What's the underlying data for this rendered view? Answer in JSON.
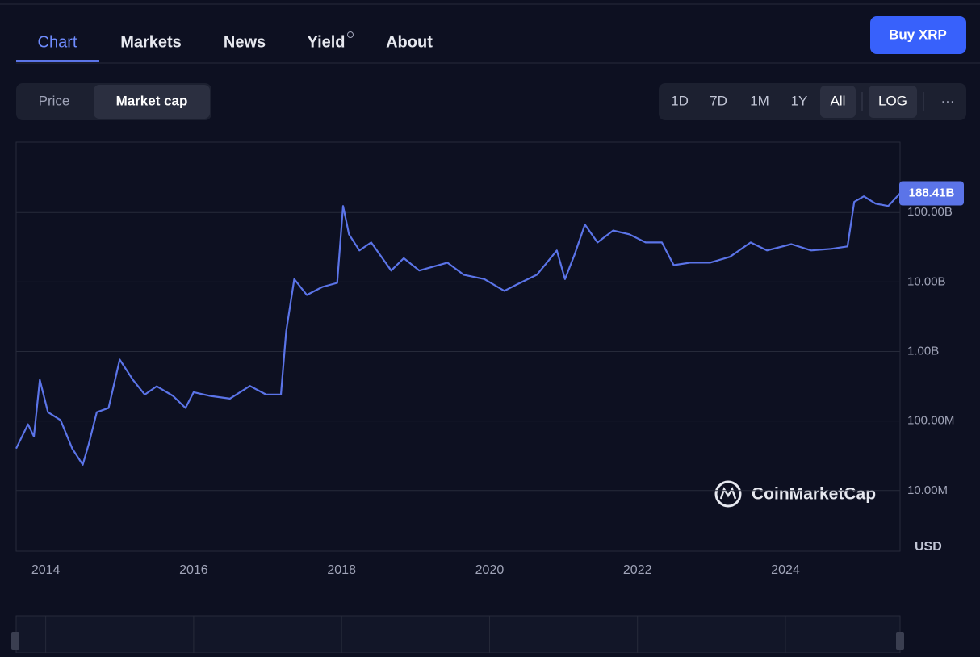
{
  "nav": {
    "tabs": [
      "Chart",
      "Markets",
      "News",
      "Yield",
      "About"
    ],
    "button": "Buy XRP"
  },
  "toolbar": {
    "modes": [
      "Price",
      "Market cap"
    ],
    "ranges": [
      "1D",
      "7D",
      "1M",
      "1Y",
      "All"
    ],
    "scale": "LOG",
    "more": "···"
  },
  "watermark": "CoinMarketCap",
  "chart_data": {
    "type": "line",
    "log_scale": true,
    "grid": true,
    "color": "#5b74e8",
    "y_unit": "USD",
    "x": [
      2013.6,
      2013.76,
      2013.84,
      2013.92,
      2014.03,
      2014.2,
      2014.36,
      2014.5,
      2014.58,
      2014.69,
      2014.85,
      2015.0,
      2015.18,
      2015.34,
      2015.5,
      2015.72,
      2015.89,
      2016.0,
      2016.22,
      2016.49,
      2016.76,
      2016.98,
      2017.18,
      2017.25,
      2017.36,
      2017.53,
      2017.74,
      2017.94,
      2018.02,
      2018.1,
      2018.24,
      2018.4,
      2018.67,
      2018.84,
      2019.05,
      2019.43,
      2019.65,
      2019.93,
      2020.2,
      2020.37,
      2020.64,
      2020.91,
      2021.02,
      2021.15,
      2021.29,
      2021.46,
      2021.67,
      2021.89,
      2022.11,
      2022.33,
      2022.49,
      2022.71,
      2022.98,
      2023.25,
      2023.53,
      2023.75,
      2024.08,
      2024.35,
      2024.62,
      2024.84,
      2024.93,
      2025.06,
      2025.22,
      2025.39,
      2025.55
    ],
    "values": [
      40300000,
      89800000,
      60000000,
      392000000,
      134000000,
      103000000,
      40000000,
      23500000,
      46000000,
      134000000,
      154000000,
      765000000,
      390000000,
      240000000,
      316000000,
      230000000,
      154000000,
      260000000,
      230000000,
      210000000,
      320000000,
      240000000,
      240000000,
      1950000000,
      11000000000,
      6500000000,
      8500000000,
      9700000000,
      124000000000,
      48500000000,
      28400000000,
      37000000000,
      14600000000,
      22000000000,
      14600000000,
      19000000000,
      12700000000,
      11000000000,
      7450000000,
      9200000000,
      12700000000,
      28400000000,
      11000000000,
      24800000000,
      67000000000,
      37000000000,
      55000000000,
      48500000000,
      37000000000,
      37000000000,
      17500000000,
      19000000000,
      19000000000,
      23000000000,
      37000000000,
      28400000000,
      35000000000,
      28400000000,
      30000000000,
      32500000000,
      142000000000,
      171000000000,
      134000000000,
      124000000000,
      188410000000
    ],
    "value_labels": [
      null,
      null,
      null,
      null,
      null,
      null,
      null,
      null,
      null,
      null,
      null,
      null,
      null,
      null,
      null,
      null,
      null,
      null,
      null,
      null,
      null,
      null,
      null,
      null,
      null,
      null,
      null,
      null,
      null,
      null,
      null,
      null,
      null,
      null,
      null,
      null,
      null,
      null,
      null,
      null,
      null,
      null,
      null,
      null,
      null,
      null,
      null,
      null,
      null,
      null,
      null,
      null,
      null,
      null,
      null,
      null,
      null,
      null,
      null,
      null,
      null,
      null,
      null,
      null,
      "188.41B"
    ],
    "xlim": [
      2013.6,
      2025.55
    ],
    "xticks": [
      2014,
      2016,
      2018,
      2020,
      2022,
      2024
    ],
    "ylim": [
      1340000,
      1030000000000
    ],
    "yticks": [
      {
        "value": 10000000,
        "label": "10.00M"
      },
      {
        "value": 100000000,
        "label": "100.00M"
      },
      {
        "value": 1000000000,
        "label": "1.00B"
      },
      {
        "value": 10000000000,
        "label": "10.00B"
      },
      {
        "value": 100000000000,
        "label": "100.00B"
      }
    ]
  }
}
